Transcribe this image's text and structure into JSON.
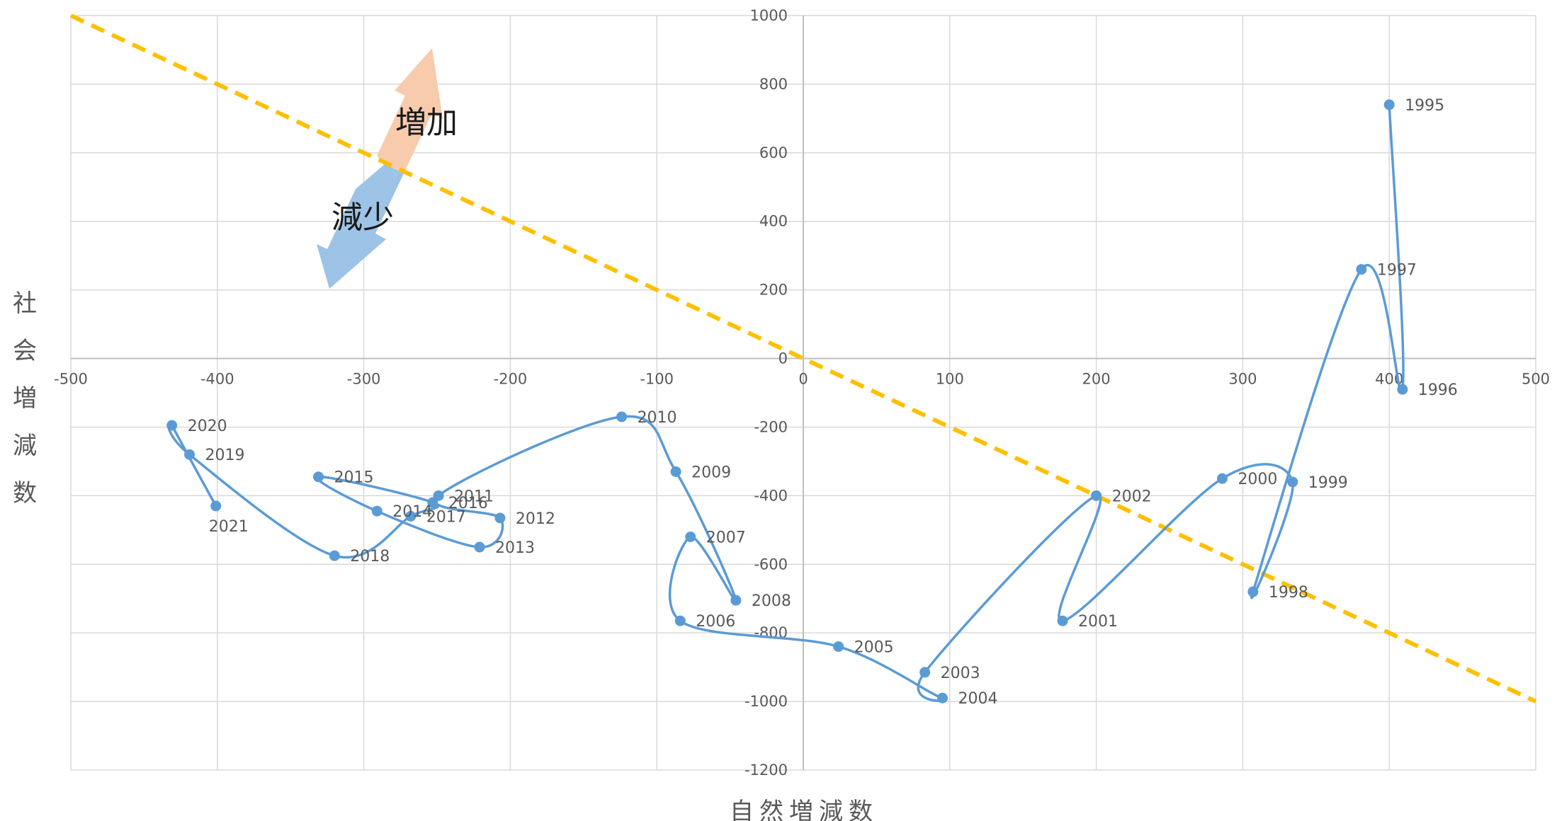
{
  "chart_data": {
    "type": "scatter",
    "xlabel": "自然増減数",
    "ylabel": "社会増減数",
    "xlim": [
      -500,
      500
    ],
    "ylim": [
      -1200,
      1000
    ],
    "x_ticks": [
      "-500",
      "-400",
      "-300",
      "-200",
      "-100",
      "0",
      "100",
      "200",
      "300",
      "400",
      "500"
    ],
    "y_ticks": [
      "1000",
      "800",
      "600",
      "400",
      "200",
      "0",
      "-200",
      "-400",
      "-600",
      "-800",
      "-1000",
      "-1200"
    ],
    "grid": true,
    "series": [
      {
        "color": "#5b9bd5",
        "smooth": true,
        "points": [
          {
            "label": "1995",
            "x": 400,
            "y": 740
          },
          {
            "label": "1996",
            "x": 409,
            "y": -90
          },
          {
            "label": "1997",
            "x": 381,
            "y": 260
          },
          {
            "label": "1998",
            "x": 307,
            "y": -680
          },
          {
            "label": "1999",
            "x": 334,
            "y": -360
          },
          {
            "label": "2000",
            "x": 286,
            "y": -350
          },
          {
            "label": "2001",
            "x": 177,
            "y": -765
          },
          {
            "label": "2002",
            "x": 200,
            "y": -400
          },
          {
            "label": "2003",
            "x": 83,
            "y": -915
          },
          {
            "label": "2004",
            "x": 95,
            "y": -990
          },
          {
            "label": "2005",
            "x": 24,
            "y": -840
          },
          {
            "label": "2006",
            "x": -84,
            "y": -765
          },
          {
            "label": "2007",
            "x": -77,
            "y": -520
          },
          {
            "label": "2008",
            "x": -46,
            "y": -705
          },
          {
            "label": "2009",
            "x": -87,
            "y": -330
          },
          {
            "label": "2010",
            "x": -124,
            "y": -170
          },
          {
            "label": "2011",
            "x": -249,
            "y": -400
          },
          {
            "label": "2012",
            "x": -207,
            "y": -465
          },
          {
            "label": "2013",
            "x": -221,
            "y": -550
          },
          {
            "label": "2014",
            "x": -291,
            "y": -445
          },
          {
            "label": "2015",
            "x": -331,
            "y": -345
          },
          {
            "label": "2016",
            "x": -253,
            "y": -420
          },
          {
            "label": "2017",
            "x": -268,
            "y": -460
          },
          {
            "label": "2018",
            "x": -320,
            "y": -575
          },
          {
            "label": "2019",
            "x": -419,
            "y": -280
          },
          {
            "label": "2020",
            "x": -431,
            "y": -195
          },
          {
            "label": "2021",
            "x": -401,
            "y": -430
          }
        ]
      }
    ],
    "reference_line": {
      "from": [
        -500,
        1000
      ],
      "to": [
        500,
        -1000
      ],
      "color": "#ffc000",
      "style": "dashed"
    },
    "annotations": [
      {
        "text": "増加",
        "color": "#f8cbad"
      },
      {
        "text": "減少",
        "color": "#9dc3e6"
      }
    ]
  }
}
